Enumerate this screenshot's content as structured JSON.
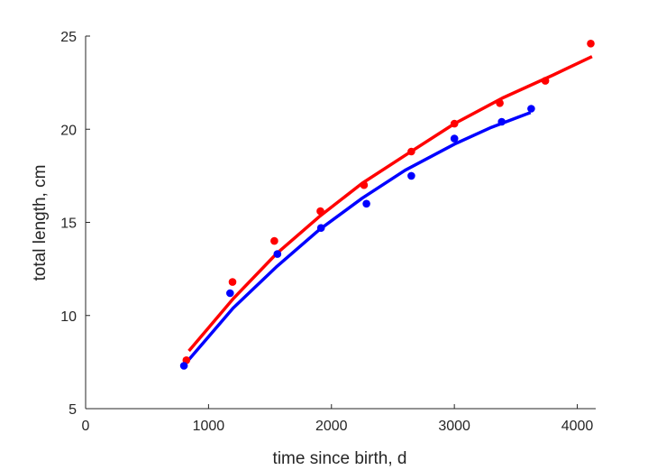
{
  "chart_data": {
    "type": "scatter",
    "xlabel": "time since birth, d",
    "ylabel": "total length, cm",
    "xlim": [
      0,
      4150
    ],
    "ylim": [
      5,
      25
    ],
    "xticks": [
      0,
      1000,
      2000,
      3000,
      4000
    ],
    "yticks": [
      5,
      10,
      15,
      20,
      25
    ],
    "grid": false,
    "series": [
      {
        "color": "#ff0000",
        "points": [
          [
            820,
            7.6
          ],
          [
            1195,
            11.8
          ],
          [
            1535,
            14.0
          ],
          [
            1910,
            15.6
          ],
          [
            2265,
            17.0
          ],
          [
            2650,
            18.8
          ],
          [
            3000,
            20.3
          ],
          [
            3370,
            21.4
          ],
          [
            3740,
            22.6
          ],
          [
            4110,
            24.6
          ]
        ],
        "fit": [
          [
            840,
            8.1
          ],
          [
            1200,
            10.9
          ],
          [
            1550,
            13.3
          ],
          [
            1900,
            15.3
          ],
          [
            2250,
            17.1
          ],
          [
            2600,
            18.6
          ],
          [
            3000,
            20.3
          ],
          [
            3400,
            21.7
          ],
          [
            3800,
            22.9
          ],
          [
            4120,
            23.9
          ]
        ]
      },
      {
        "color": "#0000ff",
        "points": [
          [
            800,
            7.3
          ],
          [
            1175,
            11.2
          ],
          [
            1560,
            13.3
          ],
          [
            1915,
            14.7
          ],
          [
            2285,
            16.0
          ],
          [
            2650,
            17.5
          ],
          [
            3000,
            19.5
          ],
          [
            3385,
            20.4
          ],
          [
            3625,
            21.1
          ]
        ],
        "fit": [
          [
            810,
            7.4
          ],
          [
            1200,
            10.4
          ],
          [
            1550,
            12.6
          ],
          [
            1900,
            14.6
          ],
          [
            2250,
            16.3
          ],
          [
            2600,
            17.8
          ],
          [
            3000,
            19.2
          ],
          [
            3300,
            20.1
          ],
          [
            3620,
            20.9
          ]
        ]
      }
    ]
  }
}
